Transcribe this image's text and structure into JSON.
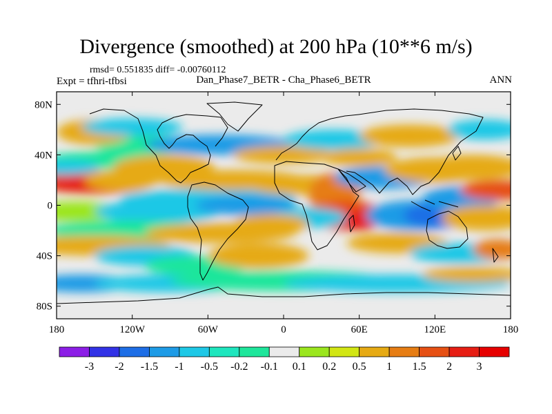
{
  "title": "Divergence (smoothed) at 200 hPa (10**6 m/s)",
  "stats": "rmsd= 0.551835 diff= -0.00760112",
  "expt": "Expt = tfhri-tfbsi",
  "subtitle": "Dan_Phase7_BETR - Cha_Phase6_BETR",
  "season": "ANN",
  "chart_data": {
    "type": "heatmap",
    "title": "Divergence (smoothed) at 200 hPa (10**6 m/s)",
    "projection": "cylindrical-equidistant",
    "xlim": [
      -180,
      180
    ],
    "ylim": [
      -90,
      90
    ],
    "x_ticks": [
      {
        "value": -180,
        "label": "180"
      },
      {
        "value": -120,
        "label": "120W"
      },
      {
        "value": -60,
        "label": "60W"
      },
      {
        "value": 0,
        "label": "0"
      },
      {
        "value": 60,
        "label": "60E"
      },
      {
        "value": 120,
        "label": "120E"
      },
      {
        "value": 180,
        "label": "180"
      }
    ],
    "y_ticks": [
      {
        "value": 80,
        "label": "80N"
      },
      {
        "value": 40,
        "label": "40N"
      },
      {
        "value": 0,
        "label": "0"
      },
      {
        "value": -40,
        "label": "40S"
      },
      {
        "value": -80,
        "label": "80S"
      }
    ],
    "colorbar": {
      "labels": [
        "-3",
        "-2",
        "-1.5",
        "-1",
        "-0.5",
        "-0.2",
        "-0.1",
        "0.1",
        "0.2",
        "0.5",
        "1",
        "1.5",
        "2",
        "3"
      ],
      "colors": [
        "#8c1ee6",
        "#3232e6",
        "#1e6ee6",
        "#1e9be6",
        "#1ec8e6",
        "#1ee6be",
        "#1ee69b",
        "#ebebeb",
        "#9be61e",
        "#d2e614",
        "#e6aa14",
        "#e67d14",
        "#e65014",
        "#e61e14",
        "#e60000"
      ]
    },
    "features": [
      {
        "region": "central equatorial Pacific (~160W, 10N)",
        "sign": "positive",
        "peak": 2
      },
      {
        "region": "western Indian Ocean (~50E, 5S)",
        "sign": "positive",
        "peak": 2
      },
      {
        "region": "Maritime Continent / west Pacific (~100-150E, 0-10S)",
        "sign": "negative",
        "peak": -1.5
      },
      {
        "region": "equatorial Atlantic (~30W, 0)",
        "sign": "negative",
        "peak": -1
      },
      {
        "region": "Indian Ocean (~60-90E, 20N)",
        "sign": "negative",
        "peak": -1
      },
      {
        "region": "East Asia (~120E, 25N)",
        "sign": "positive",
        "peak": 1
      },
      {
        "region": "South Pacific (~150W, 35S)",
        "sign": "positive",
        "peak": 1
      },
      {
        "region": "Southern Ocean (~60S)",
        "sign": "negative",
        "peak": -0.5
      }
    ]
  }
}
